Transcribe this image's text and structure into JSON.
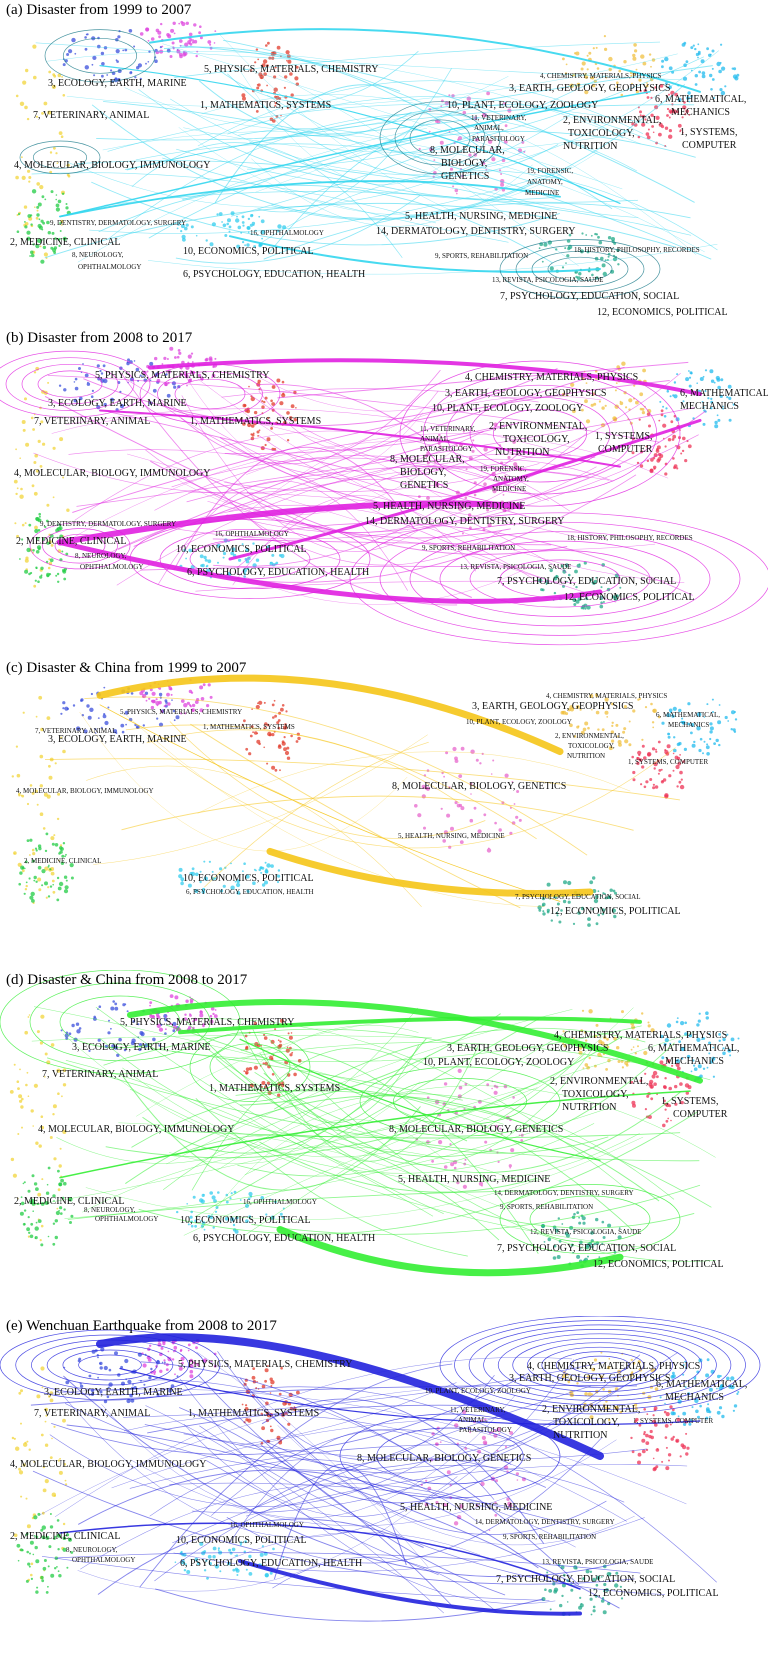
{
  "panels": [
    {
      "title": "(a) Disaster from 1999 to 2007",
      "color": "#33d6ee",
      "labels": [
        "5, PHYSICS, MATERIALS, CHEMISTRY",
        "3, ECOLOGY, EARTH, MARINE",
        "1, MATHEMATICS, SYSTEMS",
        "7, VETERINARY, ANIMAL",
        "4, MOLECULAR, BIOLOGY, IMMUNOLOGY",
        "9, DENTISTRY, DERMATOLOGY, SURGERY",
        "2, MEDICINE, CLINICAL",
        "8, NEUROLOGY,",
        "OPHTHALMOLOGY",
        "16, OPHTHALMOLOGY",
        "10, ECONOMICS, POLITICAL",
        "6, PSYCHOLOGY, EDUCATION, HEALTH",
        "4, CHEMISTRY, MATERIALS, PHYSICS",
        "3, EARTH, GEOLOGY, GEOPHYSICS",
        "6, MATHEMATICAL,",
        "MECHANICS",
        "10, PLANT, ECOLOGY, ZOOLOGY",
        "2, ENVIRONMENTAL,",
        "TOXICOLOGY,",
        "NUTRITION",
        "11, VETERINARY,",
        "ANIMAL,",
        "PARASITOLOGY",
        "1, SYSTEMS,",
        "COMPUTER",
        "8, MOLECULAR,",
        "BIOLOGY,",
        "GENETICS",
        "19, FORENSIC,",
        "ANATOMY,",
        "MEDICINE",
        "5, HEALTH, NURSING, MEDICINE",
        "14, DERMATOLOGY, DENTISTRY, SURGERY",
        "9, SPORTS, REHABILITATION",
        "18, HISTORY, PHILOSOPHY, RECORDES",
        "13, REVISTA, PSICOLOGIA, SAUDE",
        "7, PSYCHOLOGY, EDUCATION, SOCIAL",
        "12, ECONOMICS, POLITICAL"
      ]
    },
    {
      "title": "(b) Disaster from 2008 to 2017",
      "color": "#e020e0",
      "labels": [
        "5, PHYSICS, MATERIALS, CHEMISTRY",
        "3, ECOLOGY, EARTH, MARINE",
        "1, MATHEMATICS, SYSTEMS",
        "7, VETERINARY, ANIMAL",
        "4, MOLECULAR, BIOLOGY, IMMUNOLOGY",
        "9, DENTISTRY, DERMATOLOGY, SURGERY",
        "2, MEDICINE, CLINICAL",
        "8, NEUROLOGY,",
        "OPHTHALMOLOGY",
        "16, OPHTHALMOLOGY",
        "10, ECONOMICS, POLITICAL",
        "6, PSYCHOLOGY, EDUCATION, HEALTH",
        "4, CHEMISTRY, MATERIALS, PHYSICS",
        "3, EARTH, GEOLOGY, GEOPHYSICS",
        "6, MATHEMATICAL,",
        "MECHANICS",
        "10, PLANT, ECOLOGY, ZOOLOGY",
        "2, ENVIRONMENTAL,",
        "TOXICOLOGY,",
        "NUTRITION",
        "11, VETERINARY,",
        "ANIMAL,",
        "PARASITOLOGY",
        "1, SYSTEMS,",
        "COMPUTER",
        "8, MOLECULAR,",
        "BIOLOGY,",
        "GENETICS",
        "19, FORENSIC,",
        "ANATOMY,",
        "MEDICINE",
        "5, HEALTH, NURSING, MEDICINE",
        "14, DERMATOLOGY, DENTISTRY, SURGERY",
        "9, SPORTS, REHABILITATION",
        "18, HISTORY, PHILOSOPHY, RECORDES",
        "13, REVISTA, PSICOLOGIA, SAUDE",
        "7, PSYCHOLOGY, EDUCATION, SOCIAL",
        "12, ECONOMICS, POLITICAL"
      ]
    },
    {
      "title": "(c) Disaster & China from 1999 to 2007",
      "color": "#f5c518",
      "labels": [
        "5, PHYSICS, MATERIALS, CHEMISTRY",
        "3, ECOLOGY, EARTH, MARINE",
        "1, MATHEMATICS, SYSTEMS",
        "7, VETERINARY, ANIMAL",
        "4, MOLECULAR, BIOLOGY, IMMUNOLOGY",
        "2, MEDICINE, CLINICAL",
        "10, ECONOMICS, POLITICAL",
        "6, PSYCHOLOGY, EDUCATION, HEALTH",
        "4, CHEMISTRY, MATERIALS, PHYSICS",
        "3, EARTH, GEOLOGY, GEOPHYSICS",
        "6, MATHEMATICAL,",
        "MECHANICS",
        "10, PLANT, ECOLOGY, ZOOLOGY",
        "2, ENVIRONMENTAL,",
        "TOXICOLOGY,",
        "NUTRITION",
        "1, SYSTEMS, COMPUTER",
        "8, MOLECULAR, BIOLOGY, GENETICS",
        "5, HEALTH, NURSING, MEDICINE",
        "7, PSYCHOLOGY, EDUCATION, SOCIAL",
        "12, ECONOMICS, POLITICAL"
      ]
    },
    {
      "title": "(d) Disaster & China from  2008 to 2017",
      "color": "#33ee33",
      "labels": [
        "5, PHYSICS, MATERIALS, CHEMISTRY",
        "3, ECOLOGY, EARTH, MARINE",
        "1, MATHEMATICS, SYSTEMS",
        "7, VETERINARY, ANIMAL",
        "4, MOLECULAR, BIOLOGY, IMMUNOLOGY",
        "2, MEDICINE, CLINICAL",
        "8, NEUROLOGY,",
        "OPHTHALMOLOGY",
        "16, OPHTHALMOLOGY",
        "10, ECONOMICS, POLITICAL",
        "6, PSYCHOLOGY, EDUCATION, HEALTH",
        "4, CHEMISTRY, MATERIALS, PHYSICS",
        "3, EARTH, GEOLOGY, GEOPHYSICS",
        "6, MATHEMATICAL,",
        "MECHANICS",
        "10, PLANT, ECOLOGY, ZOOLOGY",
        "2, ENVIRONMENTAL,",
        "TOXICOLOGY,",
        "NUTRITION",
        "1, SYSTEMS,",
        "COMPUTER",
        "8, MOLECULAR, BIOLOGY, GENETICS",
        "5, HEALTH, NURSING, MEDICINE",
        "14, DERMATOLOGY, DENTISTRY, SURGERY",
        "9, SPORTS, REHABILITATION",
        "12, REVISTA, PSICOLOGIA, SAUDE",
        "7, PSYCHOLOGY, EDUCATION, SOCIAL",
        "12, ECONOMICS, POLITICAL"
      ]
    },
    {
      "title": "(e) Wenchuan Earthquake from  2008 to 2017",
      "color": "#2222dd",
      "labels": [
        "5, PHYSICS, MATERIALS, CHEMISTRY",
        "3, ECOLOGY, EARTH, MARINE",
        "1, MATHEMATICS, SYSTEMS",
        "7, VETERINARY, ANIMAL",
        "4, MOLECULAR, BIOLOGY, IMMUNOLOGY",
        "2, MEDICINE, CLINICAL",
        "8, NEUROLOGY,",
        "OPHTHALMOLOGY",
        "16, OPHTHALMOLOGY",
        "10, ECONOMICS, POLITICAL",
        "6, PSYCHOLOGY, EDUCATION, HEALTH",
        "4, CHEMISTRY, MATERIALS, PHYSICS",
        "3, EARTH, GEOLOGY, GEOPHYSICS",
        "6, MATHEMATICAL,",
        "MECHANICS",
        "10, PLANT, ECOLOGY, ZOOLOGY",
        "11, VETERINARY,",
        "ANIMAL,",
        "PARASITOLOGY",
        "2, ENVIRONMENTAL,",
        "TOXICOLOGY,",
        "NUTRITION",
        "1, SYSTEMS, COMPUTER",
        "8, MOLECULAR, BIOLOGY, GENETICS",
        "5, HEALTH, NURSING, MEDICINE",
        "14, DERMATOLOGY, DENTISTRY, SURGERY",
        "9, SPORTS, REHABILITATION",
        "13, REVISTA, PSICOLOGIA, SAUDE",
        "7, PSYCHOLOGY, EDUCATION, SOCIAL",
        "12, ECONOMICS, POLITICAL"
      ]
    }
  ]
}
